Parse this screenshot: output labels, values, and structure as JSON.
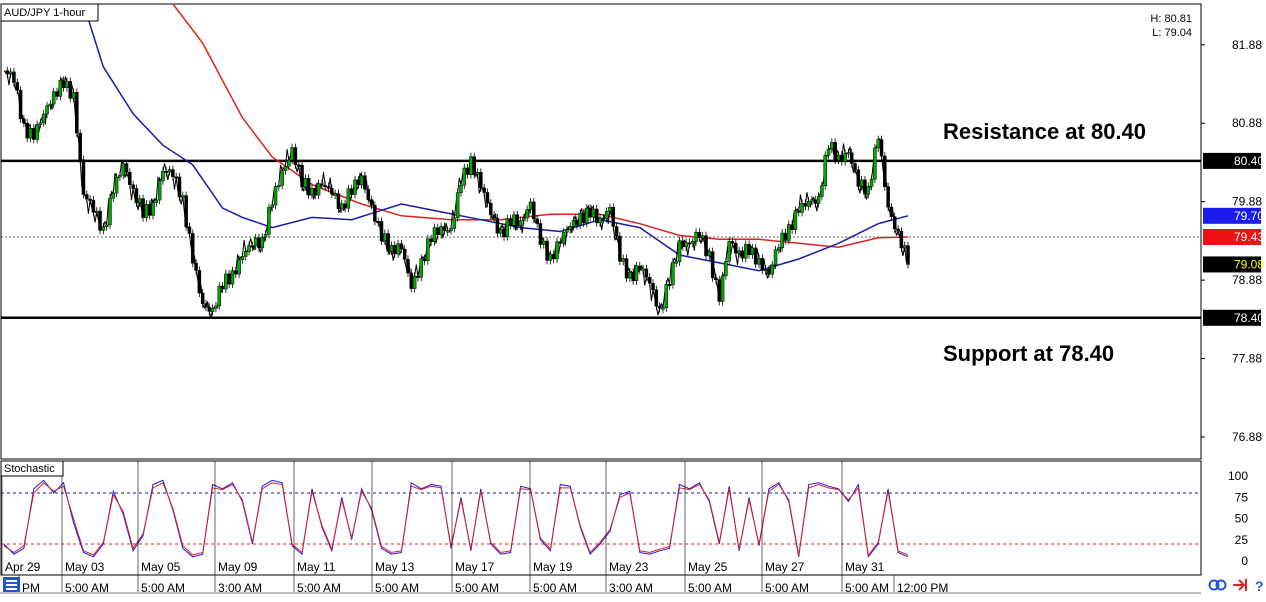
{
  "chart_data": [
    {
      "type": "candlestick",
      "title": "AUD/JPY 1-hour",
      "high_label": "H: 80.81",
      "low_label": "L: 79.04",
      "ylim": [
        76.6,
        82.4
      ],
      "y_ticks": [
        "81.88",
        "80.88",
        "79.88",
        "78.88",
        "77.88",
        "76.88"
      ],
      "y_tick_values": [
        81.88,
        80.88,
        79.88,
        78.88,
        77.88,
        76.88
      ],
      "x_labels": [
        "Apr 29",
        "May 03",
        "May 05",
        "May 09",
        "May 11",
        "May 13",
        "May 17",
        "May 19",
        "May 23",
        "May 25",
        "May 27",
        "May 31"
      ],
      "time_labels": [
        "PM",
        "5:00 AM",
        "5:00 AM",
        "3:00 AM",
        "5:00 AM",
        "5:00 AM",
        "5:00 AM",
        "5:00 AM",
        "3:00 AM",
        "5:00 AM",
        "5:00 AM",
        "5:00 AM",
        "12:00 PM"
      ],
      "horizontal_lines": [
        {
          "value": 80.4,
          "label": "80.40"
        },
        {
          "value": 78.4,
          "label": "78.40"
        }
      ],
      "current_price": {
        "value": 79.08,
        "label": "79.08"
      },
      "ma_blue_last": {
        "value": 79.7,
        "label": "79.70"
      },
      "ma_red_last": {
        "value": 79.43,
        "label": "79.43"
      },
      "annotations": [
        "Resistance at 80.40",
        "Support at 78.40"
      ],
      "price_path": [
        {
          "t": 0,
          "v": 81.5
        },
        {
          "t": 1,
          "v": 81.45
        },
        {
          "t": 2,
          "v": 80.85
        },
        {
          "t": 3,
          "v": 80.75
        },
        {
          "t": 4,
          "v": 80.95
        },
        {
          "t": 5,
          "v": 81.2
        },
        {
          "t": 6,
          "v": 81.45
        },
        {
          "t": 7,
          "v": 81.25
        },
        {
          "t": 8,
          "v": 79.95
        },
        {
          "t": 9,
          "v": 79.75
        },
        {
          "t": 10,
          "v": 79.5
        },
        {
          "t": 11,
          "v": 80.1
        },
        {
          "t": 12,
          "v": 80.35
        },
        {
          "t": 13,
          "v": 79.95
        },
        {
          "t": 14,
          "v": 79.75
        },
        {
          "t": 15,
          "v": 79.85
        },
        {
          "t": 16,
          "v": 80.3
        },
        {
          "t": 17,
          "v": 80.2
        },
        {
          "t": 18,
          "v": 79.85
        },
        {
          "t": 19,
          "v": 79.2
        },
        {
          "t": 20,
          "v": 78.6
        },
        {
          "t": 21,
          "v": 78.45
        },
        {
          "t": 22,
          "v": 78.8
        },
        {
          "t": 23,
          "v": 78.95
        },
        {
          "t": 24,
          "v": 79.25
        },
        {
          "t": 25,
          "v": 79.35
        },
        {
          "t": 26,
          "v": 79.3
        },
        {
          "t": 27,
          "v": 79.9
        },
        {
          "t": 28,
          "v": 80.3
        },
        {
          "t": 29,
          "v": 80.55
        },
        {
          "t": 30,
          "v": 80.1
        },
        {
          "t": 31,
          "v": 79.95
        },
        {
          "t": 32,
          "v": 80.15
        },
        {
          "t": 33,
          "v": 80.05
        },
        {
          "t": 34,
          "v": 79.75
        },
        {
          "t": 35,
          "v": 80.0
        },
        {
          "t": 36,
          "v": 80.2
        },
        {
          "t": 37,
          "v": 79.85
        },
        {
          "t": 38,
          "v": 79.45
        },
        {
          "t": 39,
          "v": 79.2
        },
        {
          "t": 40,
          "v": 79.3
        },
        {
          "t": 41,
          "v": 78.85
        },
        {
          "t": 42,
          "v": 79.1
        },
        {
          "t": 43,
          "v": 79.4
        },
        {
          "t": 44,
          "v": 79.5
        },
        {
          "t": 45,
          "v": 79.55
        },
        {
          "t": 46,
          "v": 80.2
        },
        {
          "t": 47,
          "v": 80.35
        },
        {
          "t": 48,
          "v": 80.05
        },
        {
          "t": 49,
          "v": 79.75
        },
        {
          "t": 50,
          "v": 79.5
        },
        {
          "t": 51,
          "v": 79.65
        },
        {
          "t": 52,
          "v": 79.55
        },
        {
          "t": 53,
          "v": 79.85
        },
        {
          "t": 54,
          "v": 79.45
        },
        {
          "t": 55,
          "v": 79.15
        },
        {
          "t": 56,
          "v": 79.35
        },
        {
          "t": 57,
          "v": 79.55
        },
        {
          "t": 58,
          "v": 79.7
        },
        {
          "t": 59,
          "v": 79.8
        },
        {
          "t": 60,
          "v": 79.6
        },
        {
          "t": 61,
          "v": 79.75
        },
        {
          "t": 62,
          "v": 79.2
        },
        {
          "t": 63,
          "v": 78.95
        },
        {
          "t": 64,
          "v": 79.05
        },
        {
          "t": 65,
          "v": 78.8
        },
        {
          "t": 66,
          "v": 78.45
        },
        {
          "t": 67,
          "v": 78.95
        },
        {
          "t": 68,
          "v": 79.35
        },
        {
          "t": 69,
          "v": 79.3
        },
        {
          "t": 70,
          "v": 79.45
        },
        {
          "t": 71,
          "v": 79.2
        },
        {
          "t": 72,
          "v": 78.7
        },
        {
          "t": 73,
          "v": 79.35
        },
        {
          "t": 74,
          "v": 79.15
        },
        {
          "t": 75,
          "v": 79.3
        },
        {
          "t": 76,
          "v": 79.15
        },
        {
          "t": 77,
          "v": 78.95
        },
        {
          "t": 78,
          "v": 79.3
        },
        {
          "t": 79,
          "v": 79.5
        },
        {
          "t": 80,
          "v": 79.85
        },
        {
          "t": 81,
          "v": 79.9
        },
        {
          "t": 82,
          "v": 79.85
        },
        {
          "t": 83,
          "v": 80.6
        },
        {
          "t": 84,
          "v": 80.45
        },
        {
          "t": 85,
          "v": 80.55
        },
        {
          "t": 86,
          "v": 80.1
        },
        {
          "t": 87,
          "v": 79.95
        },
        {
          "t": 88,
          "v": 80.75
        },
        {
          "t": 89,
          "v": 79.85
        },
        {
          "t": 90,
          "v": 79.45
        },
        {
          "t": 91,
          "v": 79.08
        }
      ],
      "ma_blue": [
        {
          "t": 8,
          "v": 82.4
        },
        {
          "t": 10,
          "v": 81.6
        },
        {
          "t": 13,
          "v": 81.0
        },
        {
          "t": 16,
          "v": 80.6
        },
        {
          "t": 19,
          "v": 80.35
        },
        {
          "t": 22,
          "v": 79.8
        },
        {
          "t": 24,
          "v": 79.68
        },
        {
          "t": 27,
          "v": 79.55
        },
        {
          "t": 31,
          "v": 79.68
        },
        {
          "t": 35,
          "v": 79.65
        },
        {
          "t": 40,
          "v": 79.85
        },
        {
          "t": 44,
          "v": 79.75
        },
        {
          "t": 48,
          "v": 79.65
        },
        {
          "t": 52,
          "v": 79.55
        },
        {
          "t": 56,
          "v": 79.5
        },
        {
          "t": 60,
          "v": 79.65
        },
        {
          "t": 64,
          "v": 79.55
        },
        {
          "t": 68,
          "v": 79.2
        },
        {
          "t": 72,
          "v": 79.1
        },
        {
          "t": 76,
          "v": 79.0
        },
        {
          "t": 80,
          "v": 79.15
        },
        {
          "t": 84,
          "v": 79.35
        },
        {
          "t": 88,
          "v": 79.6
        },
        {
          "t": 91,
          "v": 79.7
        }
      ],
      "ma_red": [
        {
          "t": 17,
          "v": 82.4
        },
        {
          "t": 20,
          "v": 81.9
        },
        {
          "t": 24,
          "v": 80.95
        },
        {
          "t": 27,
          "v": 80.45
        },
        {
          "t": 31,
          "v": 80.1
        },
        {
          "t": 36,
          "v": 79.85
        },
        {
          "t": 40,
          "v": 79.7
        },
        {
          "t": 45,
          "v": 79.65
        },
        {
          "t": 50,
          "v": 79.65
        },
        {
          "t": 55,
          "v": 79.72
        },
        {
          "t": 60,
          "v": 79.72
        },
        {
          "t": 64,
          "v": 79.6
        },
        {
          "t": 68,
          "v": 79.45
        },
        {
          "t": 72,
          "v": 79.4
        },
        {
          "t": 76,
          "v": 79.4
        },
        {
          "t": 80,
          "v": 79.35
        },
        {
          "t": 84,
          "v": 79.3
        },
        {
          "t": 88,
          "v": 79.42
        },
        {
          "t": 91,
          "v": 79.43
        }
      ]
    },
    {
      "type": "line",
      "title": "Stochastic",
      "ylim": [
        0,
        100
      ],
      "y_ticks": [
        "100",
        "75",
        "50",
        "25",
        "0"
      ],
      "y_tick_values": [
        100,
        75,
        50,
        25,
        0
      ],
      "overbought": 80,
      "oversold": 20,
      "series": [
        {
          "color": "#1a1aee",
          "values": [
            20,
            8,
            15,
            85,
            95,
            80,
            92,
            45,
            10,
            5,
            20,
            82,
            55,
            12,
            30,
            90,
            95,
            60,
            15,
            5,
            8,
            90,
            85,
            92,
            70,
            20,
            88,
            95,
            92,
            18,
            8,
            85,
            40,
            12,
            75,
            25,
            85,
            60,
            15,
            8,
            10,
            92,
            85,
            90,
            88,
            15,
            75,
            12,
            85,
            20,
            8,
            10,
            88,
            85,
            25,
            12,
            90,
            88,
            40,
            8,
            20,
            35,
            78,
            82,
            10,
            8,
            12,
            15,
            90,
            85,
            92,
            70,
            20,
            88,
            12,
            75,
            18,
            85,
            92,
            70,
            5,
            90,
            92,
            88,
            85,
            70,
            90,
            5,
            20,
            85,
            10,
            5
          ]
        },
        {
          "color": "#dd2222",
          "values": [
            18,
            10,
            18,
            80,
            92,
            82,
            88,
            50,
            12,
            7,
            22,
            78,
            58,
            15,
            32,
            86,
            92,
            62,
            18,
            7,
            10,
            86,
            84,
            90,
            72,
            22,
            85,
            92,
            90,
            20,
            10,
            82,
            42,
            14,
            72,
            27,
            82,
            62,
            17,
            10,
            12,
            88,
            84,
            88,
            86,
            17,
            72,
            14,
            82,
            22,
            10,
            12,
            85,
            84,
            27,
            14,
            86,
            86,
            42,
            10,
            22,
            37,
            75,
            80,
            12,
            10,
            14,
            17,
            86,
            84,
            90,
            72,
            22,
            85,
            14,
            72,
            20,
            82,
            90,
            72,
            7,
            86,
            90,
            86,
            84,
            72,
            86,
            7,
            22,
            82,
            12,
            7
          ]
        }
      ]
    }
  ]
}
